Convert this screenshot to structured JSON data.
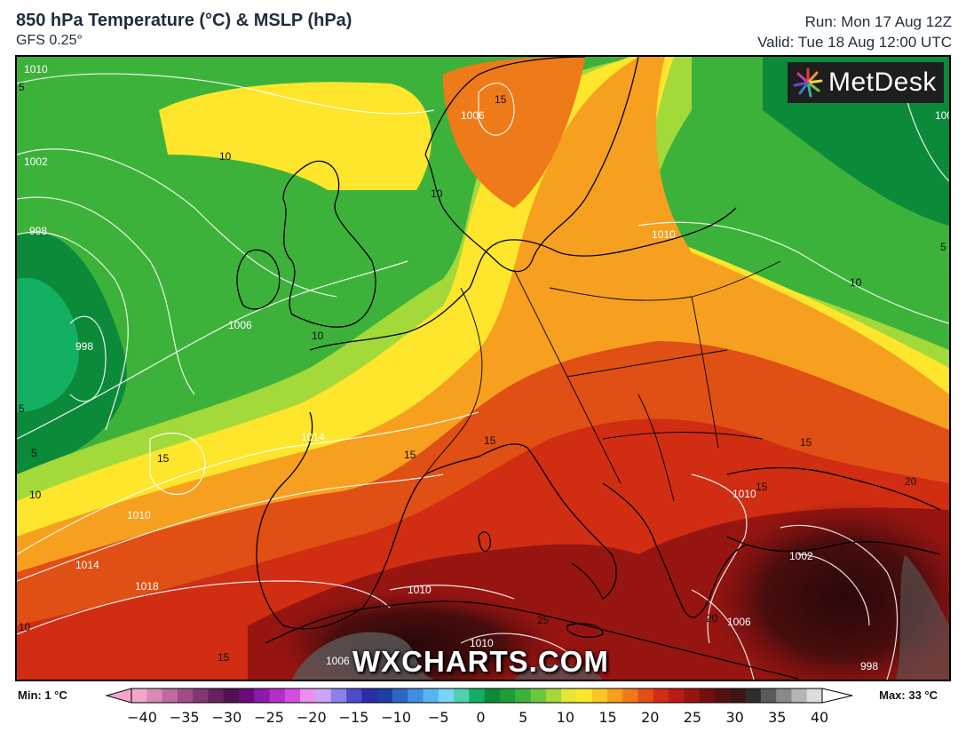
{
  "header": {
    "title": "850 hPa Temperature (°C) & MSLP (hPa)",
    "model": "GFS 0.25°",
    "run": "Run: Mon 17 Aug 12Z",
    "valid": "Valid: Tue 18 Aug 12:00 UTC"
  },
  "logo": {
    "text": "MetDesk",
    "icon": "starburst-logo-icon"
  },
  "watermark": "WXCHARTS.COM",
  "legend": {
    "min_label": "Min: 1 °C",
    "max_label": "Max: 33 °C",
    "ticks": [
      "−40",
      "−35",
      "−30",
      "−25",
      "−20",
      "−15",
      "−10",
      "−5",
      "0",
      "5",
      "10",
      "15",
      "20",
      "25",
      "30",
      "35",
      "40"
    ],
    "colors": [
      "#f2a6c8",
      "#d989b5",
      "#c06aa0",
      "#a04d8a",
      "#843575",
      "#691f61",
      "#521052",
      "#6b0a7a",
      "#8d1aa8",
      "#b32fc9",
      "#d64ee0",
      "#e98ff0",
      "#c9a6f7",
      "#8e7fe8",
      "#4b4cc9",
      "#2a2ea8",
      "#1d3fa1",
      "#2d65c4",
      "#3f8ee0",
      "#56b5f0",
      "#79d4f7",
      "#4fd0b0",
      "#13b063",
      "#0b8a3a",
      "#1f9d36",
      "#3db23a",
      "#6ac840",
      "#a4d93a",
      "#e6e634",
      "#fde62c",
      "#fbc726",
      "#f7a01f",
      "#ef7a19",
      "#e04f14",
      "#d02d12",
      "#b81c13",
      "#971511",
      "#730f0f",
      "#551010",
      "#3e1414",
      "#2e2e2e",
      "#5a5a5a",
      "#8a8a8a",
      "#b5b5b5",
      "#dcdcdc"
    ]
  },
  "map": {
    "isobar_labels": [
      "1010",
      "1002",
      "998",
      "998",
      "1006",
      "1014",
      "1010",
      "1014",
      "1018",
      "1010",
      "1010",
      "1006",
      "1006",
      "1002",
      "998",
      "1010",
      "1006",
      "1010",
      "1006",
      "1000"
    ],
    "temp_labels": [
      "5",
      "10",
      "10",
      "10",
      "10",
      "10",
      "15",
      "15",
      "15",
      "15",
      "15",
      "15",
      "5",
      "5",
      "10",
      "15",
      "20",
      "20",
      "25",
      "20",
      "5",
      "15"
    ]
  }
}
